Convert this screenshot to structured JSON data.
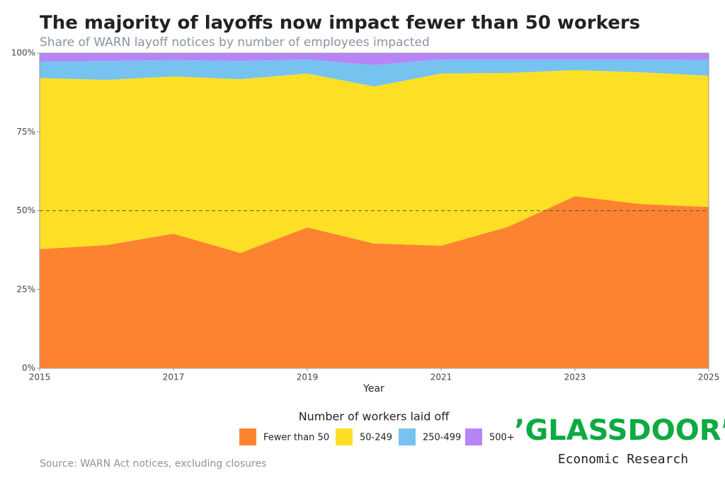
{
  "chart_data": {
    "type": "stacked_area",
    "title": "The majority of layoffs now impact fewer than 50 workers",
    "subtitle": "Share of WARN layoff notices by number of employees impacted",
    "x_label": "Year",
    "x": [
      2015,
      2016,
      2017,
      2018,
      2019,
      2020,
      2021,
      2022,
      2023,
      2024,
      2025
    ],
    "xlim": [
      2015,
      2025
    ],
    "xticks": [
      2015,
      2017,
      2019,
      2021,
      2023,
      2025
    ],
    "ylim": [
      0,
      100
    ],
    "yticks": [
      {
        "value": 0,
        "label": "0%"
      },
      {
        "value": 25,
        "label": "25%"
      },
      {
        "value": 50,
        "label": "50%"
      },
      {
        "value": 75,
        "label": "75%"
      },
      {
        "value": 100,
        "label": "100%"
      }
    ],
    "reference_line": 50,
    "legend_title": "Number of workers laid off",
    "series": [
      {
        "name": "Fewer than 50",
        "color": "#fd8331",
        "values": [
          37.8,
          39.1,
          42.7,
          36.6,
          44.7,
          39.6,
          38.9,
          44.9,
          54.6,
          52.1,
          51.2
        ]
      },
      {
        "name": "50-249",
        "color": "#fde025",
        "values": [
          54.3,
          52.4,
          49.9,
          55.1,
          48.8,
          49.8,
          54.6,
          48.8,
          40.0,
          41.8,
          41.6
        ]
      },
      {
        "name": "250-499",
        "color": "#76c3ef",
        "values": [
          5.2,
          6.0,
          5.2,
          5.8,
          4.5,
          6.8,
          4.5,
          4.3,
          3.4,
          4.1,
          5.0
        ]
      },
      {
        "name": "500+",
        "color": "#b784f7",
        "values": [
          2.7,
          2.5,
          2.2,
          2.5,
          2.0,
          3.8,
          2.0,
          2.0,
          2.0,
          2.0,
          2.2
        ]
      }
    ],
    "source": "Source: WARN Act notices, excluding closures",
    "logo": {
      "brand": "’GLASSDOOR’",
      "subtitle": "Economic Research"
    }
  }
}
